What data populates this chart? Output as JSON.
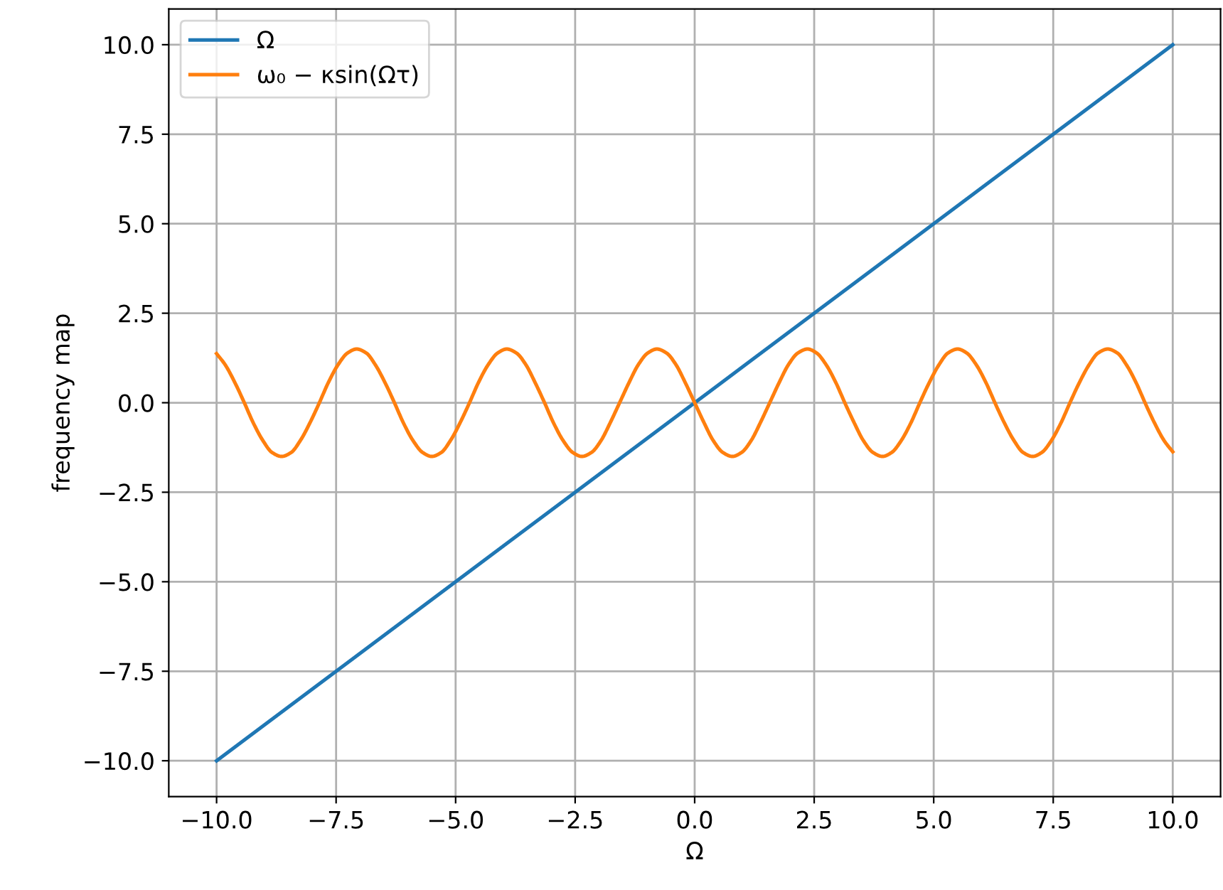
{
  "chart_data": {
    "type": "line",
    "xlabel": "Ω",
    "ylabel": "frequency map",
    "xlim": [
      -11,
      11
    ],
    "ylim": [
      -11,
      11
    ],
    "xticks": [
      {
        "value": -10,
        "label": "−10.0"
      },
      {
        "value": -7.5,
        "label": "−7.5"
      },
      {
        "value": -5,
        "label": "−5.0"
      },
      {
        "value": -2.5,
        "label": "−2.5"
      },
      {
        "value": 0,
        "label": "0.0"
      },
      {
        "value": 2.5,
        "label": "2.5"
      },
      {
        "value": 5,
        "label": "5.0"
      },
      {
        "value": 7.5,
        "label": "7.5"
      },
      {
        "value": 10,
        "label": "10.0"
      }
    ],
    "yticks": [
      {
        "value": -10,
        "label": "−10.0"
      },
      {
        "value": -7.5,
        "label": "−7.5"
      },
      {
        "value": -5,
        "label": "−5.0"
      },
      {
        "value": -2.5,
        "label": "−2.5"
      },
      {
        "value": 0,
        "label": "0.0"
      },
      {
        "value": 2.5,
        "label": "2.5"
      },
      {
        "value": 5,
        "label": "5.0"
      },
      {
        "value": 7.5,
        "label": "7.5"
      },
      {
        "value": 10,
        "label": "10.0"
      }
    ],
    "grid": true,
    "legend": "top left",
    "series": [
      {
        "name": "Ω",
        "color": "#1f77b4",
        "x": [
          -10,
          10
        ],
        "values": [
          -10,
          10
        ]
      },
      {
        "name": "ω₀ − κsin(Ωτ)",
        "color": "#ff7f0e",
        "x": [
          -10,
          -9.82,
          -9.62,
          -9.42,
          -9.23,
          -9.03,
          -8.84,
          -8.64,
          -8.44,
          -8.25,
          -8.05,
          -7.85,
          -7.66,
          -7.46,
          -7.26,
          -7.07,
          -6.87,
          -6.68,
          -6.48,
          -6.28,
          -6.09,
          -5.89,
          -5.69,
          -5.5,
          -5.3,
          -5.11,
          -4.91,
          -4.71,
          -4.52,
          -4.32,
          -4.12,
          -3.93,
          -3.73,
          -3.53,
          -3.34,
          -3.14,
          -2.95,
          -2.75,
          -2.55,
          -2.36,
          -2.16,
          -1.96,
          -1.77,
          -1.57,
          -1.37,
          -1.18,
          -0.98,
          -0.79,
          -0.59,
          -0.39,
          -0.2,
          0,
          0.2,
          0.39,
          0.59,
          0.79,
          0.98,
          1.18,
          1.37,
          1.57,
          1.77,
          1.96,
          2.16,
          2.36,
          2.55,
          2.75,
          2.95,
          3.14,
          3.34,
          3.53,
          3.73,
          3.93,
          4.12,
          4.32,
          4.52,
          4.71,
          4.91,
          5.11,
          5.3,
          5.5,
          5.69,
          5.89,
          6.09,
          6.28,
          6.48,
          6.68,
          6.87,
          7.07,
          7.26,
          7.46,
          7.66,
          7.85,
          8.05,
          8.25,
          8.44,
          8.64,
          8.84,
          9.03,
          9.23,
          9.42,
          9.62,
          9.82,
          10
        ],
        "values": [
          1.37,
          1.06,
          0.57,
          0,
          -0.57,
          -1.06,
          -1.39,
          -1.5,
          -1.39,
          -1.06,
          -0.57,
          0,
          0.57,
          1.06,
          1.39,
          1.5,
          1.39,
          1.06,
          0.57,
          0,
          -0.57,
          -1.06,
          -1.39,
          -1.5,
          -1.39,
          -1.06,
          -0.57,
          0,
          0.57,
          1.06,
          1.39,
          1.5,
          1.39,
          1.06,
          0.57,
          0,
          -0.57,
          -1.06,
          -1.39,
          -1.5,
          -1.39,
          -1.06,
          -0.57,
          0,
          0.57,
          1.06,
          1.39,
          1.5,
          1.39,
          1.06,
          0.57,
          0,
          -0.57,
          -1.06,
          -1.39,
          -1.5,
          -1.39,
          -1.06,
          -0.57,
          0,
          0.57,
          1.06,
          1.39,
          1.5,
          1.39,
          1.06,
          0.57,
          0,
          -0.57,
          -1.06,
          -1.39,
          -1.5,
          -1.39,
          -1.06,
          -0.57,
          0,
          0.57,
          1.06,
          1.39,
          1.5,
          1.39,
          1.06,
          0.57,
          0,
          -0.57,
          -1.06,
          -1.39,
          -1.5,
          -1.39,
          -1.06,
          -0.57,
          0,
          0.57,
          1.06,
          1.39,
          1.5,
          1.39,
          1.06,
          0.57,
          0,
          -0.57,
          -1.06,
          -1.37
        ]
      }
    ]
  }
}
